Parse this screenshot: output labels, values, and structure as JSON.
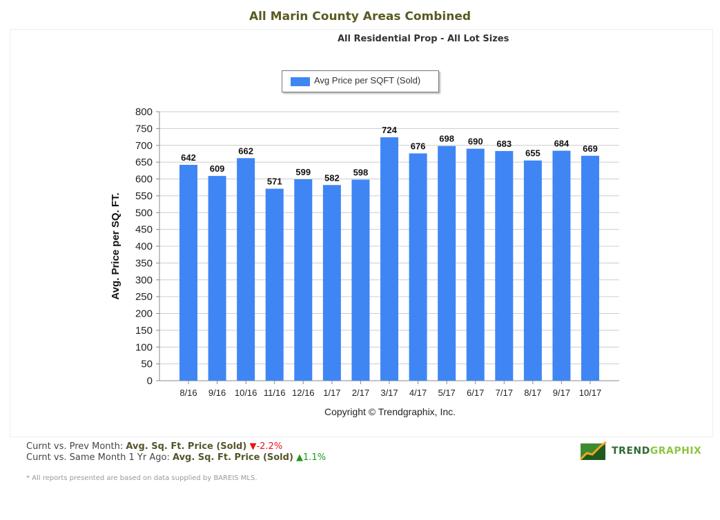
{
  "page": {
    "title": "All Marin County Areas Combined",
    "subtitle": "All Residential Prop - All Lot Sizes"
  },
  "chart_data": {
    "type": "bar",
    "categories": [
      "8/16",
      "9/16",
      "10/16",
      "11/16",
      "12/16",
      "1/17",
      "2/17",
      "3/17",
      "4/17",
      "5/17",
      "6/17",
      "7/17",
      "8/17",
      "9/17",
      "10/17"
    ],
    "series": [
      {
        "name": "Avg Price per SQFT (Sold)",
        "values": [
          642,
          609,
          662,
          571,
          599,
          582,
          598,
          724,
          676,
          698,
          690,
          683,
          655,
          684,
          669
        ],
        "color": "#3f86f4"
      }
    ],
    "xlabel": "Copyright © Trendgraphix, Inc.",
    "ylabel": "Avg. Price per SQ. FT.",
    "ylim": [
      0,
      800
    ],
    "yticks": [
      0,
      50,
      100,
      150,
      200,
      250,
      300,
      350,
      400,
      450,
      500,
      550,
      600,
      650,
      700,
      750,
      800
    ],
    "grid": true,
    "legend": "top-center",
    "data_labels": true
  },
  "footer": {
    "line1_prefix": "Curnt vs. Prev Month: ",
    "line1_metric": "Avg. Sq. Ft. Price (Sold)",
    "line1_change": "-2.2%",
    "line1_dir": "down",
    "line2_prefix": "Curnt vs. Same Month 1 Yr Ago: ",
    "line2_metric": "Avg. Sq. Ft. Price (Sold)",
    "line2_change": "1.1%",
    "line2_dir": "up",
    "note": "* All reports presented are based on data supplied by BAREIS MLS.",
    "logo_text_a": "TREND",
    "logo_text_b": "GRAPHIX"
  }
}
